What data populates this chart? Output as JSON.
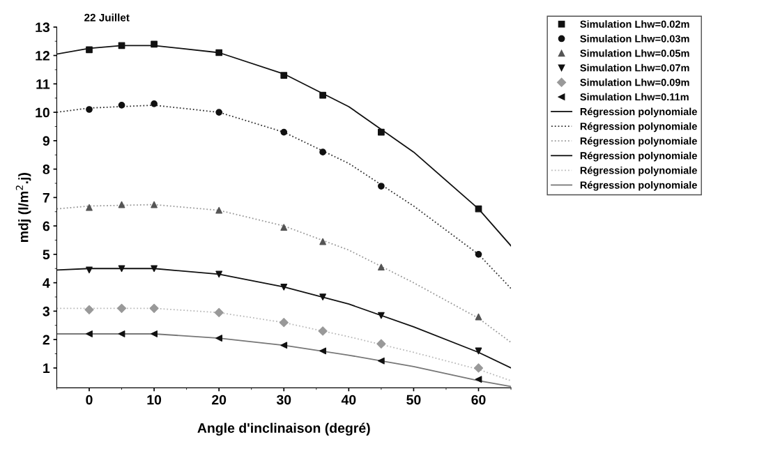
{
  "chart_data": {
    "type": "scatter",
    "title": "22 Juillet",
    "xlabel": "Angle d'inclinaison (degré)",
    "ylabel": "mdj (l/m$^{2}$.j)",
    "xlim": [
      -5,
      65
    ],
    "ylim": [
      0.3,
      13
    ],
    "xticks": [
      {
        "value": -5,
        "label": null
      },
      0,
      {
        "value": 5,
        "label": null
      },
      10,
      {
        "value": 15,
        "label": null
      },
      20,
      {
        "value": 25,
        "label": null
      },
      30,
      {
        "value": 35,
        "label": null
      },
      40,
      {
        "value": 45,
        "label": null
      },
      50,
      {
        "value": 55,
        "label": null
      },
      60,
      {
        "value": 65,
        "label": null
      }
    ],
    "yticks": [
      1,
      {
        "value": 1.5,
        "label": null
      },
      2,
      {
        "value": 2.5,
        "label": null
      },
      3,
      {
        "value": 3.5,
        "label": null
      },
      4,
      {
        "value": 4.5,
        "label": null
      },
      5,
      {
        "value": 5.5,
        "label": null
      },
      6,
      {
        "value": 6.5,
        "label": null
      },
      7,
      {
        "value": 7.5,
        "label": null
      },
      8,
      {
        "value": 8.5,
        "label": null
      },
      9,
      {
        "value": 9.5,
        "label": null
      },
      10,
      {
        "value": 10.5,
        "label": null
      },
      11,
      {
        "value": 11.5,
        "label": null
      },
      12,
      {
        "value": 12.5,
        "label": null
      },
      13
    ],
    "x": [
      0,
      5,
      10,
      20,
      30,
      36,
      45,
      60
    ],
    "grid": false,
    "legend": "right",
    "series": [
      {
        "name": "Simulation Lhw=0.02m",
        "marker": "square",
        "color": "#111111",
        "values": [
          12.2,
          12.35,
          12.4,
          12.1,
          11.3,
          10.6,
          9.3,
          6.6
        ]
      },
      {
        "name": "Simulation Lhw=0.03m",
        "marker": "circle",
        "color": "#111111",
        "values": [
          10.1,
          10.25,
          10.3,
          10.0,
          9.3,
          8.6,
          7.4,
          5.0
        ]
      },
      {
        "name": "Simulation Lhw=0.05m",
        "marker": "triangle",
        "color": "#555555",
        "values": [
          6.65,
          6.75,
          6.75,
          6.55,
          5.95,
          5.45,
          4.55,
          2.8
        ]
      },
      {
        "name": "Simulation Lhw=0.07m",
        "marker": "triangle_down",
        "color": "#111111",
        "values": [
          4.45,
          4.5,
          4.5,
          4.3,
          3.85,
          3.5,
          2.85,
          1.6
        ]
      },
      {
        "name": "Simulation Lhw=0.09m",
        "marker": "diamond",
        "color": "#999999",
        "values": [
          3.05,
          3.1,
          3.1,
          2.95,
          2.6,
          2.3,
          1.85,
          1.0
        ]
      },
      {
        "name": "Simulation Lhw=0.11m",
        "marker": "triangle_left",
        "color": "#111111",
        "values": [
          2.2,
          2.2,
          2.2,
          2.05,
          1.8,
          1.6,
          1.25,
          0.6
        ]
      },
      {
        "name": "Régression polynomiale",
        "type": "line",
        "line_style": "solid",
        "color": "#111111",
        "x": [
          -5,
          0,
          5,
          10,
          20,
          30,
          40,
          50,
          60,
          65
        ],
        "values": [
          12.05,
          12.25,
          12.35,
          12.35,
          12.1,
          11.35,
          10.2,
          8.6,
          6.6,
          5.3
        ]
      },
      {
        "name": "Régression polynomiale",
        "type": "line",
        "line_style": "dotted",
        "color": "#333333",
        "x": [
          -5,
          0,
          10,
          20,
          30,
          40,
          50,
          60,
          65
        ],
        "values": [
          10.0,
          10.15,
          10.25,
          10.0,
          9.3,
          8.2,
          6.7,
          5.0,
          3.8
        ]
      },
      {
        "name": "Régression polynomiale",
        "type": "line",
        "line_style": "dotted",
        "color": "#999999",
        "x": [
          -5,
          0,
          10,
          20,
          30,
          40,
          50,
          60,
          65
        ],
        "values": [
          6.6,
          6.7,
          6.75,
          6.55,
          6.0,
          5.15,
          4.0,
          2.75,
          1.9
        ]
      },
      {
        "name": "Régression polynomiale",
        "type": "line",
        "line_style": "solid",
        "color": "#111111",
        "x": [
          -5,
          0,
          10,
          20,
          30,
          40,
          50,
          60,
          65
        ],
        "values": [
          4.45,
          4.5,
          4.5,
          4.3,
          3.85,
          3.25,
          2.45,
          1.55,
          1.0
        ]
      },
      {
        "name": "Régression polynomiale",
        "type": "line",
        "line_style": "dotted",
        "color": "#bbbbbb",
        "x": [
          -5,
          0,
          10,
          20,
          30,
          40,
          50,
          60,
          65
        ],
        "values": [
          3.1,
          3.1,
          3.1,
          2.95,
          2.6,
          2.1,
          1.55,
          0.95,
          0.55
        ]
      },
      {
        "name": "Régression polynomiale",
        "type": "line",
        "line_style": "solid",
        "color": "#777777",
        "x": [
          -5,
          0,
          10,
          20,
          30,
          40,
          50,
          60,
          65
        ],
        "values": [
          2.2,
          2.2,
          2.2,
          2.05,
          1.8,
          1.45,
          1.05,
          0.55,
          0.35
        ]
      }
    ]
  }
}
